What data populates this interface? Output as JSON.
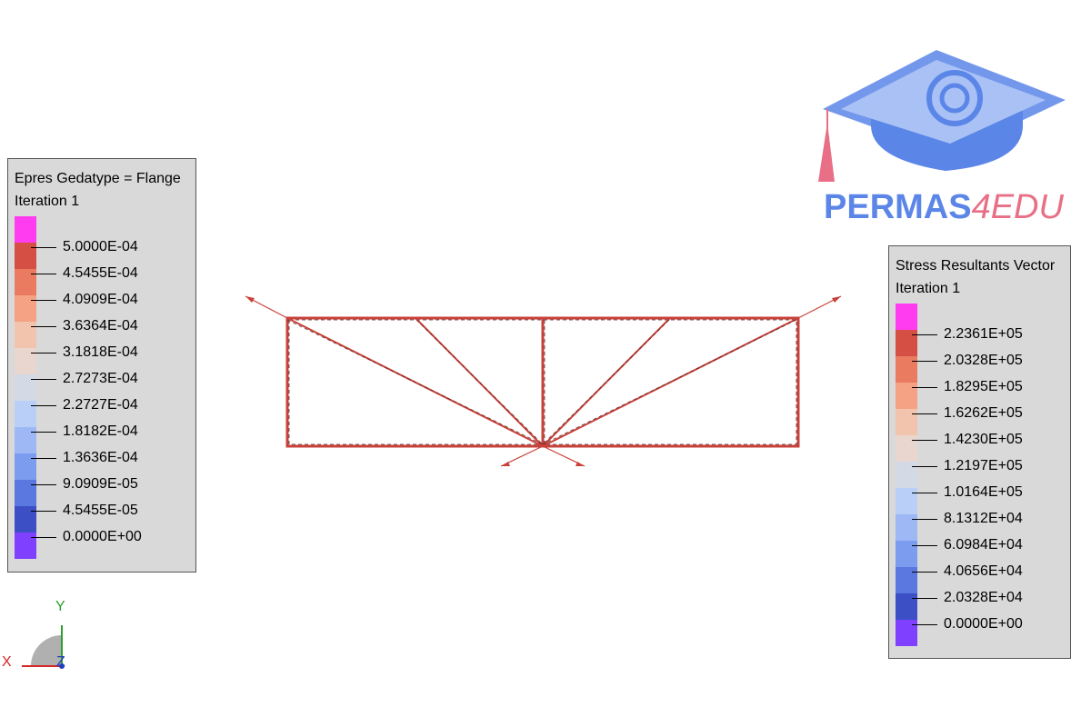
{
  "legend_left": {
    "title": "Epres Gedatype = Flange",
    "subtitle": "Iteration 1",
    "values": [
      "5.0000E-04",
      "4.5455E-04",
      "4.0909E-04",
      "3.6364E-04",
      "3.1818E-04",
      "2.7273E-04",
      "2.2727E-04",
      "1.8182E-04",
      "1.3636E-04",
      "9.0909E-05",
      "4.5455E-05",
      "0.0000E+00"
    ]
  },
  "legend_right": {
    "title": "Stress Resultants Vector",
    "subtitle": "Iteration 1",
    "values": [
      "2.2361E+05",
      "2.0328E+05",
      "1.8295E+05",
      "1.6262E+05",
      "1.4230E+05",
      "1.2197E+05",
      "1.0164E+05",
      "8.1312E+04",
      "6.0984E+04",
      "4.0656E+04",
      "2.0328E+04",
      "0.0000E+00"
    ]
  },
  "colors": {
    "scale": [
      "#ff3cf0",
      "#d54f45",
      "#ea7b61",
      "#f4a283",
      "#f3c4ad",
      "#e8d6cf",
      "#d3dae6",
      "#b9cff7",
      "#9db8f5",
      "#7c9cef",
      "#5a78e0",
      "#3c4fc4",
      "#8040ff"
    ],
    "truss": "#c8413a",
    "logo_blue": "#5b86e8",
    "logo_pink": "#e86f86"
  },
  "logo": {
    "part1": "PERMAS",
    "part2": "4EDU"
  },
  "axes": {
    "x": "X",
    "y": "Y",
    "z": "Z"
  }
}
